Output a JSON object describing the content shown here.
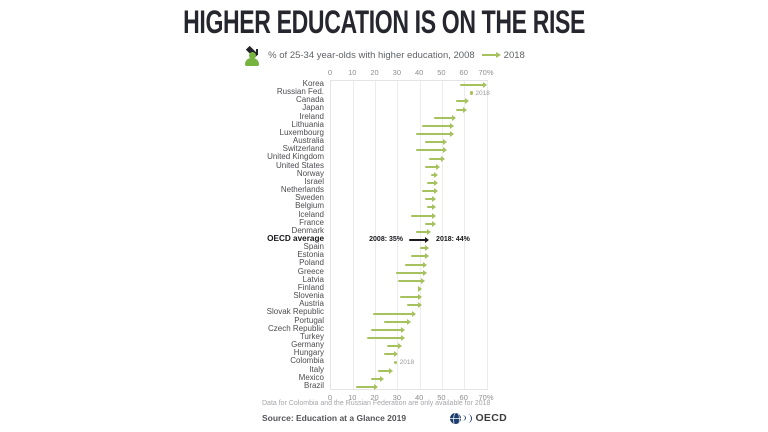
{
  "title": "HIGHER EDUCATION IS ON THE RISE",
  "subtitle": {
    "icon": "graduate-icon",
    "text_before_arrow": "% of 25-34 year-olds with higher education, 2008",
    "text_after_arrow": "2018"
  },
  "chart_data": {
    "type": "arrow-dumbbell",
    "title": "HIGHER EDUCATION IS ON THE RISE",
    "subtitle": "% of 25-34 year-olds with higher education, 2008 → 2018",
    "unit": "%",
    "xlim": [
      0,
      70
    ],
    "tick_step": 10,
    "tick_labels": [
      "0",
      "10",
      "20",
      "30",
      "40",
      "50",
      "60",
      "70%"
    ],
    "grid": true,
    "series_years": [
      "2008",
      "2018"
    ],
    "note_label": "2018",
    "oecd_annotation": {
      "start_label": "2008: 35%",
      "end_label": "2018: 44%"
    },
    "rows": [
      {
        "label": "Korea",
        "v2008": 58,
        "v2018": 70
      },
      {
        "label": "Russian Fed.",
        "v2008": null,
        "v2018": 63,
        "note": "2018"
      },
      {
        "label": "Canada",
        "v2008": 56,
        "v2018": 62
      },
      {
        "label": "Japan",
        "v2008": 56,
        "v2018": 61
      },
      {
        "label": "Ireland",
        "v2008": 46,
        "v2018": 56
      },
      {
        "label": "Lithuania",
        "v2008": 41,
        "v2018": 55
      },
      {
        "label": "Luxembourg",
        "v2008": 38,
        "v2018": 55
      },
      {
        "label": "Australia",
        "v2008": 42,
        "v2018": 52
      },
      {
        "label": "Switzerland",
        "v2008": 38,
        "v2018": 52
      },
      {
        "label": "United Kingdom",
        "v2008": 44,
        "v2018": 51
      },
      {
        "label": "United States",
        "v2008": 42,
        "v2018": 49
      },
      {
        "label": "Norway",
        "v2008": 45,
        "v2018": 48
      },
      {
        "label": "Israel",
        "v2008": 43,
        "v2018": 48
      },
      {
        "label": "Netherlands",
        "v2008": 41,
        "v2018": 48
      },
      {
        "label": "Sweden",
        "v2008": 42,
        "v2018": 47
      },
      {
        "label": "Belgium",
        "v2008": 43,
        "v2018": 47
      },
      {
        "label": "Iceland",
        "v2008": 36,
        "v2018": 47
      },
      {
        "label": "France",
        "v2008": 42,
        "v2018": 47
      },
      {
        "label": "Denmark",
        "v2008": 38,
        "v2018": 45
      },
      {
        "label": "OECD average",
        "v2008": 35,
        "v2018": 44,
        "bold": true,
        "annotated": true
      },
      {
        "label": "Spain",
        "v2008": 40,
        "v2018": 44
      },
      {
        "label": "Estonia",
        "v2008": 36,
        "v2018": 44
      },
      {
        "label": "Poland",
        "v2008": 33,
        "v2018": 43
      },
      {
        "label": "Greece",
        "v2008": 29,
        "v2018": 43
      },
      {
        "label": "Latvia",
        "v2008": 30,
        "v2018": 42
      },
      {
        "label": "Finland",
        "v2008": 39,
        "v2018": 41
      },
      {
        "label": "Slovenia",
        "v2008": 31,
        "v2018": 41
      },
      {
        "label": "Austria",
        "v2008": 34,
        "v2018": 41
      },
      {
        "label": "Slovak Republic",
        "v2008": 19,
        "v2018": 38
      },
      {
        "label": "Portugal",
        "v2008": 24,
        "v2018": 36
      },
      {
        "label": "Czech Republic",
        "v2008": 18,
        "v2018": 33
      },
      {
        "label": "Turkey",
        "v2008": 16,
        "v2018": 33
      },
      {
        "label": "Germany",
        "v2008": 25,
        "v2018": 32
      },
      {
        "label": "Hungary",
        "v2008": 24,
        "v2018": 30
      },
      {
        "label": "Colombia",
        "v2008": null,
        "v2018": 29,
        "note": "2018"
      },
      {
        "label": "Italy",
        "v2008": 21,
        "v2018": 28
      },
      {
        "label": "Mexico",
        "v2008": 18,
        "v2018": 24
      },
      {
        "label": "Brazil",
        "v2008": 11,
        "v2018": 21
      }
    ]
  },
  "footnote": "Data for Colombia and the Russian Federation are only available for 2018",
  "source": "Source: Education at a Glance 2019",
  "logo_text": "OECD",
  "colors": {
    "arrow_green": "#a6c25e",
    "oecd_arrow": "#1a1a1f",
    "icon_green": "#76b33f",
    "note_text": "#9a9a9f",
    "logo_navy": "#1d3d6d",
    "title_text": "#26262e"
  }
}
